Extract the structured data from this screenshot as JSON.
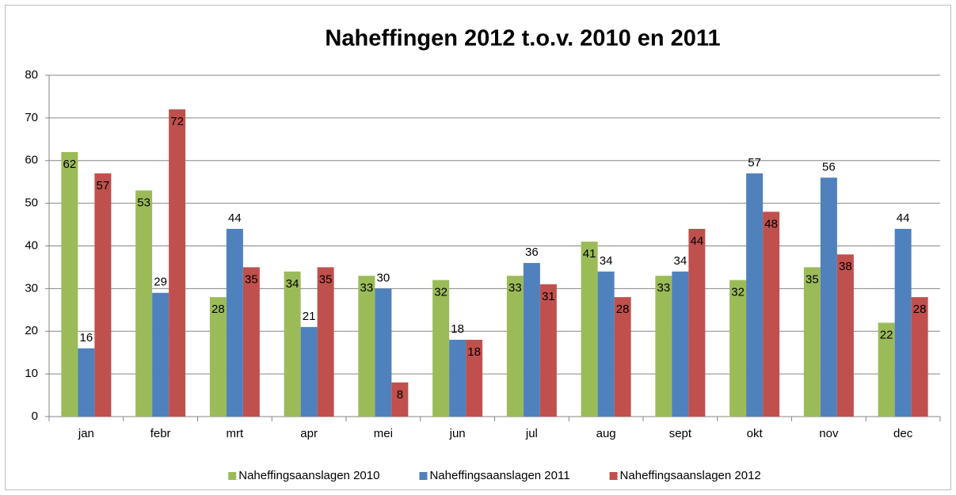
{
  "chart_data": {
    "type": "bar",
    "title": "Naheffingen 2012 t.o.v. 2010 en 2011",
    "categories": [
      "jan",
      "febr",
      "mrt",
      "apr",
      "mei",
      "jun",
      "jul",
      "aug",
      "sept",
      "okt",
      "nov",
      "dec"
    ],
    "series": [
      {
        "name": "Naheffingsaanslagen 2010",
        "color": "#9bbb59",
        "values": [
          62,
          53,
          28,
          34,
          33,
          32,
          33,
          41,
          33,
          32,
          35,
          22
        ]
      },
      {
        "name": "Naheffingsaanslagen 2011",
        "color": "#4f81bd",
        "values": [
          16,
          29,
          44,
          21,
          30,
          18,
          36,
          34,
          34,
          57,
          56,
          44
        ]
      },
      {
        "name": "Naheffingsaanslagen 2012",
        "color": "#c0504d",
        "values": [
          57,
          72,
          35,
          35,
          8,
          18,
          31,
          28,
          44,
          48,
          38,
          28
        ]
      }
    ],
    "ylim": [
      0,
      80
    ],
    "yticks": [
      0,
      10,
      20,
      30,
      40,
      50,
      60,
      70,
      80
    ],
    "grid": true,
    "legend": "bottom"
  }
}
